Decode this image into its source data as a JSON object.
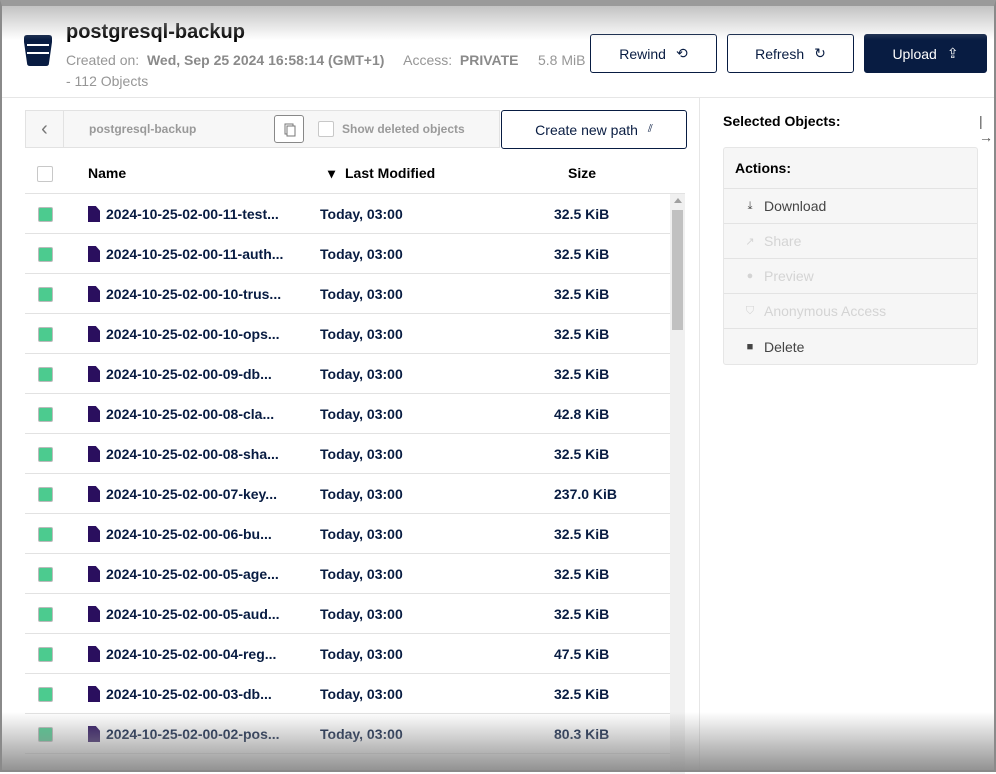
{
  "header": {
    "title": "postgresql-backup",
    "created_label": "Created on:",
    "created_value": "Wed, Sep 25 2024 16:58:14 (GMT+1)",
    "access_label": "Access:",
    "access_value": "PRIVATE",
    "usage": "5.8 MiB - 112 Objects",
    "rewind": "Rewind",
    "refresh": "Refresh",
    "upload": "Upload"
  },
  "browser": {
    "path": "postgresql-backup",
    "show_deleted": "Show deleted objects",
    "create_path": "Create new path",
    "columns": {
      "name": "Name",
      "modified": "Last Modified",
      "size": "Size"
    },
    "rows": [
      {
        "name": "2024-10-25-02-00-11-test...",
        "modified": "Today, 03:00",
        "size": "32.5 KiB"
      },
      {
        "name": "2024-10-25-02-00-11-auth...",
        "modified": "Today, 03:00",
        "size": "32.5 KiB"
      },
      {
        "name": "2024-10-25-02-00-10-trus...",
        "modified": "Today, 03:00",
        "size": "32.5 KiB"
      },
      {
        "name": "2024-10-25-02-00-10-ops...",
        "modified": "Today, 03:00",
        "size": "32.5 KiB"
      },
      {
        "name": "2024-10-25-02-00-09-db...",
        "modified": "Today, 03:00",
        "size": "32.5 KiB"
      },
      {
        "name": "2024-10-25-02-00-08-cla...",
        "modified": "Today, 03:00",
        "size": "42.8 KiB"
      },
      {
        "name": "2024-10-25-02-00-08-sha...",
        "modified": "Today, 03:00",
        "size": "32.5 KiB"
      },
      {
        "name": "2024-10-25-02-00-07-key...",
        "modified": "Today, 03:00",
        "size": "237.0 KiB"
      },
      {
        "name": "2024-10-25-02-00-06-bu...",
        "modified": "Today, 03:00",
        "size": "32.5 KiB"
      },
      {
        "name": "2024-10-25-02-00-05-age...",
        "modified": "Today, 03:00",
        "size": "32.5 KiB"
      },
      {
        "name": "2024-10-25-02-00-05-aud...",
        "modified": "Today, 03:00",
        "size": "32.5 KiB"
      },
      {
        "name": "2024-10-25-02-00-04-reg...",
        "modified": "Today, 03:00",
        "size": "47.5 KiB"
      },
      {
        "name": "2024-10-25-02-00-03-db...",
        "modified": "Today, 03:00",
        "size": "32.5 KiB"
      },
      {
        "name": "2024-10-25-02-00-02-pos...",
        "modified": "Today, 03:00",
        "size": "80.3 KiB"
      }
    ]
  },
  "panel": {
    "title": "Selected Objects:",
    "actions_title": "Actions:",
    "actions": [
      {
        "label": "Download",
        "icon": "download-icon",
        "enabled": true
      },
      {
        "label": "Share",
        "icon": "share-icon",
        "enabled": false
      },
      {
        "label": "Preview",
        "icon": "eye-icon",
        "enabled": false
      },
      {
        "label": "Anonymous Access",
        "icon": "shield-icon",
        "enabled": false
      },
      {
        "label": "Delete",
        "icon": "trash-icon",
        "enabled": true
      }
    ]
  },
  "colors": {
    "primary": "#081c42",
    "selected_checkbox": "#4ccb8f",
    "file_icon": "#2a0f5e"
  }
}
